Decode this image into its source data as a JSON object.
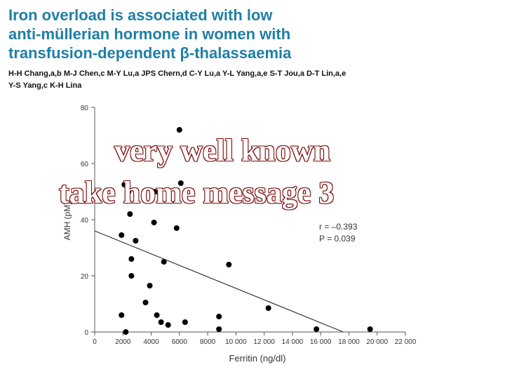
{
  "header": {
    "title_lines": [
      "Iron overload is associated with low",
      "anti-müllerian hormone in women with",
      "transfusion-dependent β-thalassaemia"
    ],
    "author_lines": [
      "H-H Chang,a,b M-J Chen,c M-Y Lu,a JPS Chern,d C-Y Lu,a Y-L Yang,a,e S-T Jou,a D-T Lin,a,e",
      "Y-S Yang,c K-H Lina"
    ]
  },
  "overlay": {
    "line1": "very well known",
    "line2": "take home message   3",
    "text_color": "#ffffff",
    "outline_color": "#7a0a0a"
  },
  "chart_data": {
    "type": "scatter",
    "xlabel": "Ferritin  (ng/dl)",
    "ylabel": "AMH (pM)",
    "xlim": [
      0,
      22000
    ],
    "ylim": [
      0,
      80
    ],
    "xticks": [
      0,
      2000,
      4000,
      6000,
      8000,
      10000,
      12000,
      14000,
      16000,
      18000,
      20000,
      22000
    ],
    "xtick_labels": [
      "0",
      "2000",
      "4000",
      "6000",
      "8000",
      "10 000",
      "12 000",
      "14 000",
      "16 000",
      "18 000",
      "20 000",
      "22 000"
    ],
    "yticks": [
      0,
      20,
      40,
      60,
      80
    ],
    "ytick_labels": [
      "0",
      "20",
      "40",
      "60",
      "80"
    ],
    "annotations": [
      "r = –0.393",
      "P = 0.039"
    ],
    "points": [
      {
        "x": 6000,
        "y": 72
      },
      {
        "x": 2100,
        "y": 52.5
      },
      {
        "x": 2400,
        "y": 50
      },
      {
        "x": 4300,
        "y": 50
      },
      {
        "x": 6100,
        "y": 53
      },
      {
        "x": 2500,
        "y": 42
      },
      {
        "x": 4200,
        "y": 39
      },
      {
        "x": 5800,
        "y": 37
      },
      {
        "x": 1900,
        "y": 34.5
      },
      {
        "x": 2900,
        "y": 32.5
      },
      {
        "x": 2600,
        "y": 26
      },
      {
        "x": 4900,
        "y": 25
      },
      {
        "x": 9500,
        "y": 24
      },
      {
        "x": 2600,
        "y": 20
      },
      {
        "x": 3900,
        "y": 16.5
      },
      {
        "x": 3600,
        "y": 10.5
      },
      {
        "x": 12300,
        "y": 8.5
      },
      {
        "x": 1900,
        "y": 6
      },
      {
        "x": 4400,
        "y": 6
      },
      {
        "x": 8800,
        "y": 5.5
      },
      {
        "x": 4700,
        "y": 3.5
      },
      {
        "x": 5200,
        "y": 2.5
      },
      {
        "x": 6400,
        "y": 3.5
      },
      {
        "x": 8800,
        "y": 1
      },
      {
        "x": 15700,
        "y": 1
      },
      {
        "x": 19500,
        "y": 1
      },
      {
        "x": 2200,
        "y": 0
      }
    ],
    "regression_line": {
      "x": [
        0,
        17600
      ],
      "y": [
        36,
        0
      ]
    },
    "colors": {
      "points": "#000000",
      "axes": "#555555",
      "line": "#333333",
      "text": "#333333"
    }
  }
}
